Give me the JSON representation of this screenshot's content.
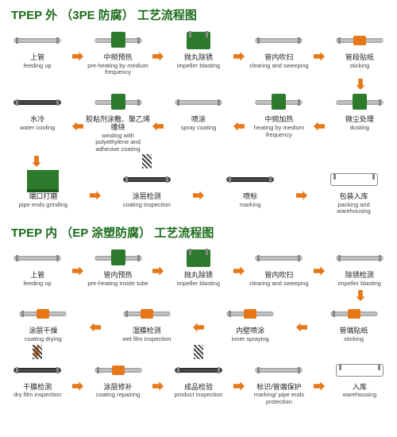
{
  "colors": {
    "green": "#1a6b1a",
    "arrow": "#e67817",
    "pipe": "#999",
    "black": "#222"
  },
  "section1": {
    "title": "TPEP 外 （3PE 防腐） 工艺流程图",
    "rows": [
      [
        {
          "cn": "上管",
          "en": "feeding up",
          "icon": "pipe"
        },
        {
          "cn": "中频预热",
          "en": "pre-heating by medium frequency",
          "icon": "green-mid"
        },
        {
          "cn": "抛丸除锈",
          "en": "impeller blasting",
          "icon": "green-block"
        },
        {
          "cn": "管内吹扫",
          "en": "clearing and sweeping",
          "icon": "pipe"
        },
        {
          "cn": "管段贴纸",
          "en": "sticking",
          "icon": "orange-mid"
        }
      ],
      [
        {
          "cn": "水冷",
          "en": "water cooling",
          "icon": "black"
        },
        {
          "cn": "胶粘剂涂敷、聚乙烯缠绕",
          "en": "winding with polyethylene and adhesive coating",
          "icon": "green-mid"
        },
        {
          "cn": "喷涂",
          "en": "spray coating",
          "icon": "pipe"
        },
        {
          "cn": "中频加热",
          "en": "heating by medium frequency",
          "icon": "green-mid"
        },
        {
          "cn": "微尘处理",
          "en": "dusting",
          "icon": "green-mid"
        }
      ],
      [
        {
          "cn": "端口打磨",
          "en": "pipe ends grinding",
          "icon": "machine"
        },
        {
          "cn": "涂层检测",
          "en": "coating inspection",
          "icon": "spring"
        },
        {
          "cn": "喷标",
          "en": "marking",
          "icon": "black"
        },
        {
          "cn": "包装入库",
          "en": "packing and warehousing",
          "icon": "rack"
        }
      ]
    ]
  },
  "section2": {
    "title": "TPEP 内 （EP 涂塑防腐） 工艺流程图",
    "rows": [
      [
        {
          "cn": "上管",
          "en": "feeding up",
          "icon": "pipe"
        },
        {
          "cn": "管内预热",
          "en": "pre-heating inside tube",
          "icon": "green-mid"
        },
        {
          "cn": "抛丸除锈",
          "en": "impeller blasting",
          "icon": "green-block"
        },
        {
          "cn": "管内吹扫",
          "en": "clearing and sweeping",
          "icon": "pipe"
        },
        {
          "cn": "除锈检测",
          "en": "impeller blasting",
          "icon": "pipe"
        }
      ],
      [
        {
          "cn": "涂层干燥",
          "en": "coating drying",
          "icon": "orange-mid"
        },
        {
          "cn": "湿膜检测",
          "en": "wet film inspection",
          "icon": "orange-mid"
        },
        {
          "cn": "内壁喷涂",
          "en": "inner spraying",
          "icon": "orange-mid"
        },
        {
          "cn": "管端贴纸",
          "en": "sticking",
          "icon": "orange-mid"
        }
      ],
      [
        {
          "cn": "干膜检测",
          "en": "dry film inspection",
          "icon": "spring"
        },
        {
          "cn": "涂层修补",
          "en": "coating repairing",
          "icon": "orange-mid"
        },
        {
          "cn": "成品检验",
          "en": "product inspection",
          "icon": "spring"
        },
        {
          "cn": "标识/管端保护",
          "en": "marking/ pipe ends protection",
          "icon": "pipe"
        },
        {
          "cn": "入库",
          "en": "warehousing",
          "icon": "rack"
        }
      ]
    ]
  }
}
